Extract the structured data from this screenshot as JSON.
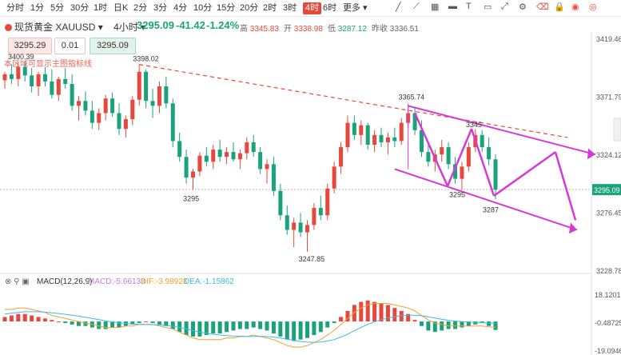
{
  "toolbar": {
    "timeframes": [
      "分时",
      "1分",
      "5分",
      "30分",
      "1时",
      "日K",
      "2分",
      "3分",
      "4分",
      "10分",
      "15分",
      "20分",
      "2时",
      "3时",
      "4时",
      "6时",
      "更多"
    ],
    "active": "4时",
    "icons": [
      "draw-line-icon",
      "ray-icon",
      "table-icon",
      "brush-icon",
      "text-icon",
      "rectangle-icon",
      "fullscreen-icon",
      "settings-icon",
      "eraser-icon",
      "lock-icon",
      "eye-icon",
      "eye-slash-icon"
    ]
  },
  "quote": {
    "name": "现货黄金",
    "symbol": "XAUUSD",
    "period": "4小时",
    "price": "3295.09",
    "change": "-41.42",
    "change_pct": "-1.24%",
    "high_label": "高",
    "high": "3345.83",
    "open_label": "开",
    "open": "3338.98",
    "low_label": "低",
    "low": "3287.12",
    "prev_label": "昨收",
    "prev": "3336.51"
  },
  "trade": {
    "sell": "3295.29",
    "qty": "0.01",
    "buy": "3295.09"
  },
  "hint": "本区域可显示主图指标线",
  "macd": {
    "label": "MACD(12,26,9)",
    "macd": "MACD:-5.66133",
    "dif": "DIF:-3.98928",
    "dea": "DEA:-1.15862",
    "colors": {
      "dif": "#f0a030",
      "dea": "#40b8e8",
      "up": "#e8483b",
      "down": "#1aa37a"
    }
  },
  "chart_data": {
    "type": "candlestick",
    "y_axis_ticks": [
      3419.46,
      3371.79,
      3324.12,
      3276.45,
      3228.78
    ],
    "macd_axis_ticks": [
      18.1201,
      -0.48725,
      -19.0946
    ],
    "current_price": 3295.09,
    "ylim": [
      3228.78,
      3419.46
    ],
    "annotations": [
      {
        "text": "3400.39",
        "kind": "label"
      },
      {
        "text": "3398.02",
        "kind": "label"
      },
      {
        "text": "3365.74",
        "kind": "label"
      },
      {
        "text": "3345",
        "kind": "label"
      },
      {
        "text": "3295",
        "kind": "label"
      },
      {
        "text": "3295",
        "kind": "label"
      },
      {
        "text": "3287",
        "kind": "label"
      },
      {
        "text": "3247.85",
        "kind": "label"
      }
    ],
    "candles": [
      {
        "o": 3385,
        "h": 3392,
        "l": 3378,
        "c": 3390
      },
      {
        "o": 3390,
        "h": 3398,
        "l": 3382,
        "c": 3386
      },
      {
        "o": 3386,
        "h": 3400,
        "l": 3380,
        "c": 3396
      },
      {
        "o": 3396,
        "h": 3400.39,
        "l": 3384,
        "c": 3389
      },
      {
        "o": 3389,
        "h": 3395,
        "l": 3375,
        "c": 3380
      },
      {
        "o": 3380,
        "h": 3392,
        "l": 3372,
        "c": 3390
      },
      {
        "o": 3390,
        "h": 3396,
        "l": 3380,
        "c": 3384
      },
      {
        "o": 3384,
        "h": 3394,
        "l": 3370,
        "c": 3373
      },
      {
        "o": 3373,
        "h": 3388,
        "l": 3368,
        "c": 3386
      },
      {
        "o": 3386,
        "h": 3395,
        "l": 3378,
        "c": 3382
      },
      {
        "o": 3382,
        "h": 3390,
        "l": 3360,
        "c": 3364
      },
      {
        "o": 3364,
        "h": 3372,
        "l": 3352,
        "c": 3368
      },
      {
        "o": 3368,
        "h": 3376,
        "l": 3356,
        "c": 3360
      },
      {
        "o": 3360,
        "h": 3368,
        "l": 3345,
        "c": 3350
      },
      {
        "o": 3350,
        "h": 3362,
        "l": 3344,
        "c": 3358
      },
      {
        "o": 3358,
        "h": 3373,
        "l": 3352,
        "c": 3370
      },
      {
        "o": 3370,
        "h": 3375,
        "l": 3355,
        "c": 3358
      },
      {
        "o": 3358,
        "h": 3366,
        "l": 3340,
        "c": 3345
      },
      {
        "o": 3345,
        "h": 3356,
        "l": 3338,
        "c": 3353
      },
      {
        "o": 3353,
        "h": 3372,
        "l": 3348,
        "c": 3369
      },
      {
        "o": 3369,
        "h": 3398.02,
        "l": 3364,
        "c": 3392
      },
      {
        "o": 3392,
        "h": 3394,
        "l": 3362,
        "c": 3368
      },
      {
        "o": 3368,
        "h": 3378,
        "l": 3354,
        "c": 3364
      },
      {
        "o": 3364,
        "h": 3384,
        "l": 3358,
        "c": 3380
      },
      {
        "o": 3380,
        "h": 3388,
        "l": 3362,
        "c": 3366
      },
      {
        "o": 3366,
        "h": 3370,
        "l": 3330,
        "c": 3335
      },
      {
        "o": 3335,
        "h": 3342,
        "l": 3318,
        "c": 3322
      },
      {
        "o": 3322,
        "h": 3328,
        "l": 3300,
        "c": 3305
      },
      {
        "o": 3305,
        "h": 3312,
        "l": 3295,
        "c": 3310
      },
      {
        "o": 3310,
        "h": 3326,
        "l": 3306,
        "c": 3323
      },
      {
        "o": 3323,
        "h": 3330,
        "l": 3314,
        "c": 3318
      },
      {
        "o": 3318,
        "h": 3332,
        "l": 3312,
        "c": 3328
      },
      {
        "o": 3328,
        "h": 3336,
        "l": 3318,
        "c": 3322
      },
      {
        "o": 3322,
        "h": 3330,
        "l": 3316,
        "c": 3326
      },
      {
        "o": 3326,
        "h": 3334,
        "l": 3318,
        "c": 3320
      },
      {
        "o": 3320,
        "h": 3328,
        "l": 3312,
        "c": 3325
      },
      {
        "o": 3325,
        "h": 3338,
        "l": 3320,
        "c": 3334
      },
      {
        "o": 3334,
        "h": 3340,
        "l": 3322,
        "c": 3326
      },
      {
        "o": 3326,
        "h": 3330,
        "l": 3308,
        "c": 3312
      },
      {
        "o": 3312,
        "h": 3320,
        "l": 3300,
        "c": 3316
      },
      {
        "o": 3316,
        "h": 3322,
        "l": 3290,
        "c": 3294
      },
      {
        "o": 3294,
        "h": 3300,
        "l": 3270,
        "c": 3274
      },
      {
        "o": 3274,
        "h": 3282,
        "l": 3258,
        "c": 3262
      },
      {
        "o": 3262,
        "h": 3272,
        "l": 3247.85,
        "c": 3268
      },
      {
        "o": 3268,
        "h": 3276,
        "l": 3256,
        "c": 3260
      },
      {
        "o": 3260,
        "h": 3270,
        "l": 3244,
        "c": 3266
      },
      {
        "o": 3266,
        "h": 3284,
        "l": 3262,
        "c": 3280
      },
      {
        "o": 3280,
        "h": 3290,
        "l": 3270,
        "c": 3274
      },
      {
        "o": 3274,
        "h": 3300,
        "l": 3270,
        "c": 3296
      },
      {
        "o": 3296,
        "h": 3318,
        "l": 3292,
        "c": 3314
      },
      {
        "o": 3314,
        "h": 3334,
        "l": 3308,
        "c": 3330
      },
      {
        "o": 3330,
        "h": 3356,
        "l": 3326,
        "c": 3350
      },
      {
        "o": 3350,
        "h": 3356,
        "l": 3336,
        "c": 3340
      },
      {
        "o": 3340,
        "h": 3352,
        "l": 3332,
        "c": 3348
      },
      {
        "o": 3348,
        "h": 3350,
        "l": 3328,
        "c": 3332
      },
      {
        "o": 3332,
        "h": 3344,
        "l": 3326,
        "c": 3340
      },
      {
        "o": 3340,
        "h": 3346,
        "l": 3330,
        "c": 3334
      },
      {
        "o": 3334,
        "h": 3342,
        "l": 3324,
        "c": 3338
      },
      {
        "o": 3338,
        "h": 3346,
        "l": 3330,
        "c": 3335
      },
      {
        "o": 3335,
        "h": 3354,
        "l": 3332,
        "c": 3350
      },
      {
        "o": 3350,
        "h": 3365.74,
        "l": 3346,
        "c": 3358
      },
      {
        "o": 3358,
        "h": 3363,
        "l": 3340,
        "c": 3344
      },
      {
        "o": 3344,
        "h": 3352,
        "l": 3322,
        "c": 3326
      },
      {
        "o": 3326,
        "h": 3334,
        "l": 3314,
        "c": 3318
      },
      {
        "o": 3318,
        "h": 3328,
        "l": 3310,
        "c": 3324
      },
      {
        "o": 3324,
        "h": 3336,
        "l": 3318,
        "c": 3330
      },
      {
        "o": 3330,
        "h": 3334,
        "l": 3312,
        "c": 3316
      },
      {
        "o": 3316,
        "h": 3322,
        "l": 3300,
        "c": 3304
      },
      {
        "o": 3304,
        "h": 3318,
        "l": 3295,
        "c": 3314
      },
      {
        "o": 3314,
        "h": 3334,
        "l": 3310,
        "c": 3330
      },
      {
        "o": 3330,
        "h": 3345,
        "l": 3326,
        "c": 3340
      },
      {
        "o": 3340,
        "h": 3344,
        "l": 3326,
        "c": 3330
      },
      {
        "o": 3330,
        "h": 3338,
        "l": 3315,
        "c": 3320
      },
      {
        "o": 3320,
        "h": 3324,
        "l": 3287.12,
        "c": 3295.09
      }
    ],
    "macd_hist": [
      3,
      4,
      5,
      5,
      4,
      3,
      2,
      1,
      0,
      -1,
      -2,
      -3,
      -3,
      -4,
      -5,
      -5,
      -4,
      -4,
      -3,
      -2,
      -1,
      0,
      -1,
      -2,
      -3,
      -5,
      -7,
      -9,
      -10,
      -10,
      -9,
      -8,
      -8,
      -7,
      -6,
      -5,
      -5,
      -4,
      -5,
      -6,
      -8,
      -10,
      -12,
      -13,
      -12,
      -11,
      -9,
      -7,
      -4,
      -1,
      3,
      7,
      11,
      13,
      14,
      13,
      12,
      11,
      9,
      7,
      5,
      1,
      -3,
      -6,
      -7,
      -6,
      -5,
      -5,
      -4,
      -3,
      -2,
      -1,
      -3,
      -5.66
    ],
    "dif": [
      8,
      8,
      9,
      9,
      8,
      7,
      6,
      4,
      3,
      2,
      1,
      0,
      -1,
      -2,
      -3,
      -4,
      -4,
      -4,
      -3,
      -3,
      -2,
      -2,
      -2,
      -3,
      -4,
      -5,
      -7,
      -9,
      -11,
      -12,
      -12,
      -12,
      -12,
      -11,
      -11,
      -10,
      -10,
      -9,
      -10,
      -11,
      -12,
      -14,
      -16,
      -17,
      -17,
      -16,
      -14,
      -12,
      -9,
      -6,
      -2,
      2,
      6,
      9,
      11,
      12,
      12,
      12,
      11,
      10,
      9,
      7,
      4,
      1,
      -1,
      -2,
      -3,
      -3,
      -3,
      -3,
      -3,
      -3,
      -3.5,
      -3.99
    ],
    "dea": [
      5,
      5.5,
      6,
      6.5,
      6.5,
      6.5,
      6.2,
      5.8,
      5.3,
      4.8,
      4.2,
      3.5,
      2.8,
      2.0,
      1.2,
      0.4,
      -0.3,
      -0.9,
      -1.3,
      -1.7,
      -1.9,
      -2,
      -2.1,
      -2.3,
      -2.7,
      -3.2,
      -4,
      -5,
      -6,
      -7,
      -7.8,
      -8.5,
      -9,
      -9.4,
      -9.7,
      -9.8,
      -9.9,
      -9.9,
      -9.9,
      -10,
      -10.4,
      -11,
      -11.8,
      -12.6,
      -13.3,
      -13.7,
      -13.9,
      -13.6,
      -13,
      -12,
      -10.4,
      -8.4,
      -6.1,
      -3.9,
      -1.9,
      -0.2,
      1.2,
      2.4,
      3.2,
      3.8,
      4.2,
      4.2,
      3.8,
      3.1,
      2.3,
      1.5,
      0.8,
      0.3,
      -0.1,
      -0.4,
      -0.6,
      -0.8,
      -1.0,
      -1.16
    ]
  }
}
